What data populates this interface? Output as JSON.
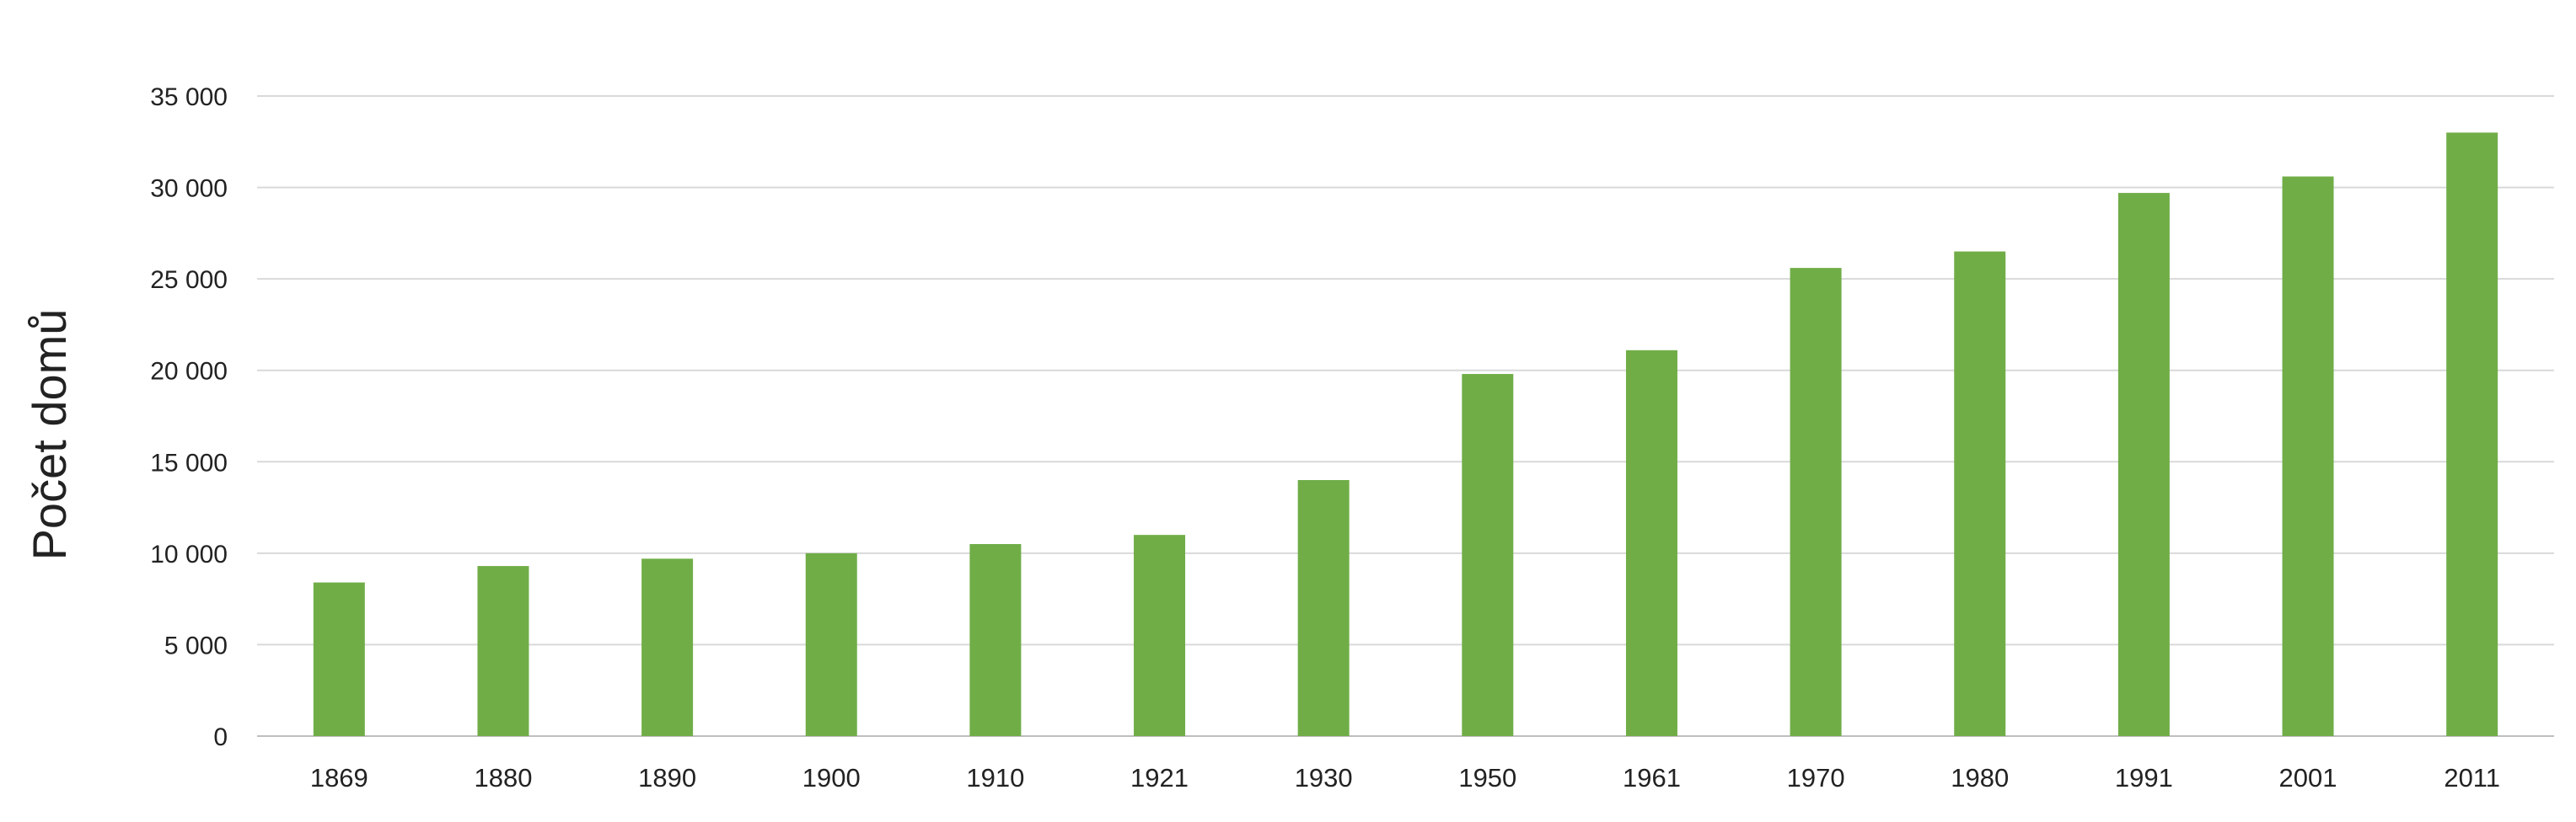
{
  "chart_data": {
    "type": "bar",
    "title": "",
    "xlabel": "",
    "ylabel": "Počet domů",
    "categories": [
      "1869",
      "1880",
      "1890",
      "1900",
      "1910",
      "1921",
      "1930",
      "1950",
      "1961",
      "1970",
      "1980",
      "1991",
      "2001",
      "2011"
    ],
    "series": [
      {
        "values": [
          8400,
          9300,
          9700,
          10000,
          10500,
          11000,
          14000,
          19800,
          21100,
          25600,
          26500,
          29700,
          30600,
          33000
        ]
      }
    ],
    "ylim": [
      0,
      35000
    ],
    "yticks": [
      0,
      5000,
      10000,
      15000,
      20000,
      25000,
      30000,
      35000
    ],
    "ytick_labels": [
      "0",
      "5 000",
      "10 000",
      "15 000",
      "20 000",
      "25 000",
      "30 000",
      "35 000"
    ],
    "grid": true,
    "legend": "none",
    "colors": {
      "bar": "#70AD47",
      "grid": "#D9D9D9",
      "axis": "#BFBFBF",
      "text": "#222222"
    }
  }
}
